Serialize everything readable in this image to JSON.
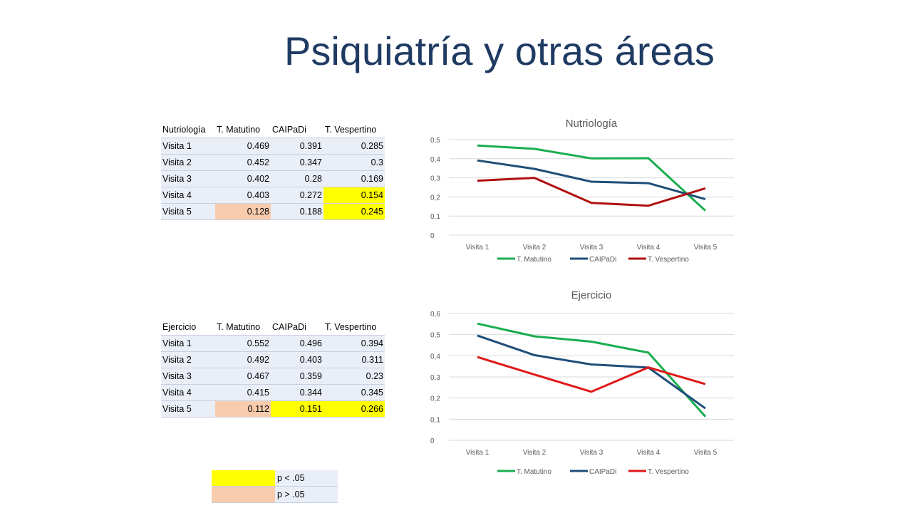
{
  "title": "Psiquiatría y otras áreas",
  "tables": [
    {
      "headers": [
        "Nutriología",
        "T. Matutino",
        "CAIPaDi",
        "T. Vespertino"
      ],
      "rows": [
        [
          "Visita 1",
          "0.469",
          "0.391",
          "0.285"
        ],
        [
          "Visita 2",
          "0.452",
          "0.347",
          "0.3"
        ],
        [
          "Visita 3",
          "0.402",
          "0.28",
          "0.169"
        ],
        [
          "Visita 4",
          "0.403",
          "0.272",
          "0.154"
        ],
        [
          "Visita 5",
          "0.128",
          "0.188",
          "0.245"
        ]
      ],
      "highlights": [
        {
          "row": 3,
          "col": 3,
          "color": "#ffff00"
        },
        {
          "row": 4,
          "col": 1,
          "color": "#f8cbad"
        },
        {
          "row": 4,
          "col": 3,
          "color": "#ffff00"
        }
      ]
    },
    {
      "headers": [
        "Ejercicio",
        "T. Matutino",
        "CAIPaDi",
        "T. Vespertino"
      ],
      "rows": [
        [
          "Visita 1",
          "0.552",
          "0.496",
          "0.394"
        ],
        [
          "Visita 2",
          "0.492",
          "0.403",
          "0.311"
        ],
        [
          "Visita 3",
          "0.467",
          "0.359",
          "0.23"
        ],
        [
          "Visita 4",
          "0.415",
          "0.344",
          "0.345"
        ],
        [
          "Visita 5",
          "0.112",
          "0.151",
          "0.266"
        ]
      ],
      "highlights": [
        {
          "row": 4,
          "col": 1,
          "color": "#f8cbad"
        },
        {
          "row": 4,
          "col": 2,
          "color": "#ffff00"
        },
        {
          "row": 4,
          "col": 3,
          "color": "#ffff00"
        }
      ]
    }
  ],
  "significance_legend": [
    {
      "color": "#ffff00",
      "label": "p < .05"
    },
    {
      "color": "#f8cbad",
      "label": "p > .05"
    }
  ],
  "chart_data": [
    {
      "type": "line",
      "title": "Nutriología",
      "categories": [
        "Visita 1",
        "Visita 2",
        "Visita 3",
        "Visita 4",
        "Visita 5"
      ],
      "yticks": [
        "0",
        "0,1",
        "0,2",
        "0,3",
        "0,4",
        "0,5"
      ],
      "ylim": [
        0,
        0.5
      ],
      "grid": true,
      "legend_position": "bottom",
      "series": [
        {
          "name": "T. Matutino",
          "color": "#1aad4f",
          "values": [
            0.469,
            0.452,
            0.402,
            0.403,
            0.128
          ]
        },
        {
          "name": "CAIPaDi",
          "color": "#1f4e79",
          "values": [
            0.391,
            0.347,
            0.28,
            0.272,
            0.188
          ]
        },
        {
          "name": "T. Vespertino",
          "color": "#b01010",
          "values": [
            0.285,
            0.3,
            0.169,
            0.154,
            0.245
          ]
        }
      ]
    },
    {
      "type": "line",
      "title": "Ejercicio",
      "categories": [
        "Visita 1",
        "Visita 2",
        "Visita 3",
        "Visita 4",
        "Visita 5"
      ],
      "yticks": [
        "0",
        "0,1",
        "0,2",
        "0,3",
        "0,4",
        "0,5",
        "0,6"
      ],
      "ylim": [
        0,
        0.6
      ],
      "grid": true,
      "legend_position": "bottom",
      "series": [
        {
          "name": "T. Matutino",
          "color": "#1aad4f",
          "values": [
            0.552,
            0.492,
            0.467,
            0.415,
            0.112
          ]
        },
        {
          "name": "CAIPaDi",
          "color": "#1f4e79",
          "values": [
            0.496,
            0.403,
            0.359,
            0.344,
            0.151
          ]
        },
        {
          "name": "T. Vespertino",
          "color": "#e01818",
          "values": [
            0.394,
            0.311,
            0.23,
            0.345,
            0.266
          ]
        }
      ]
    }
  ]
}
